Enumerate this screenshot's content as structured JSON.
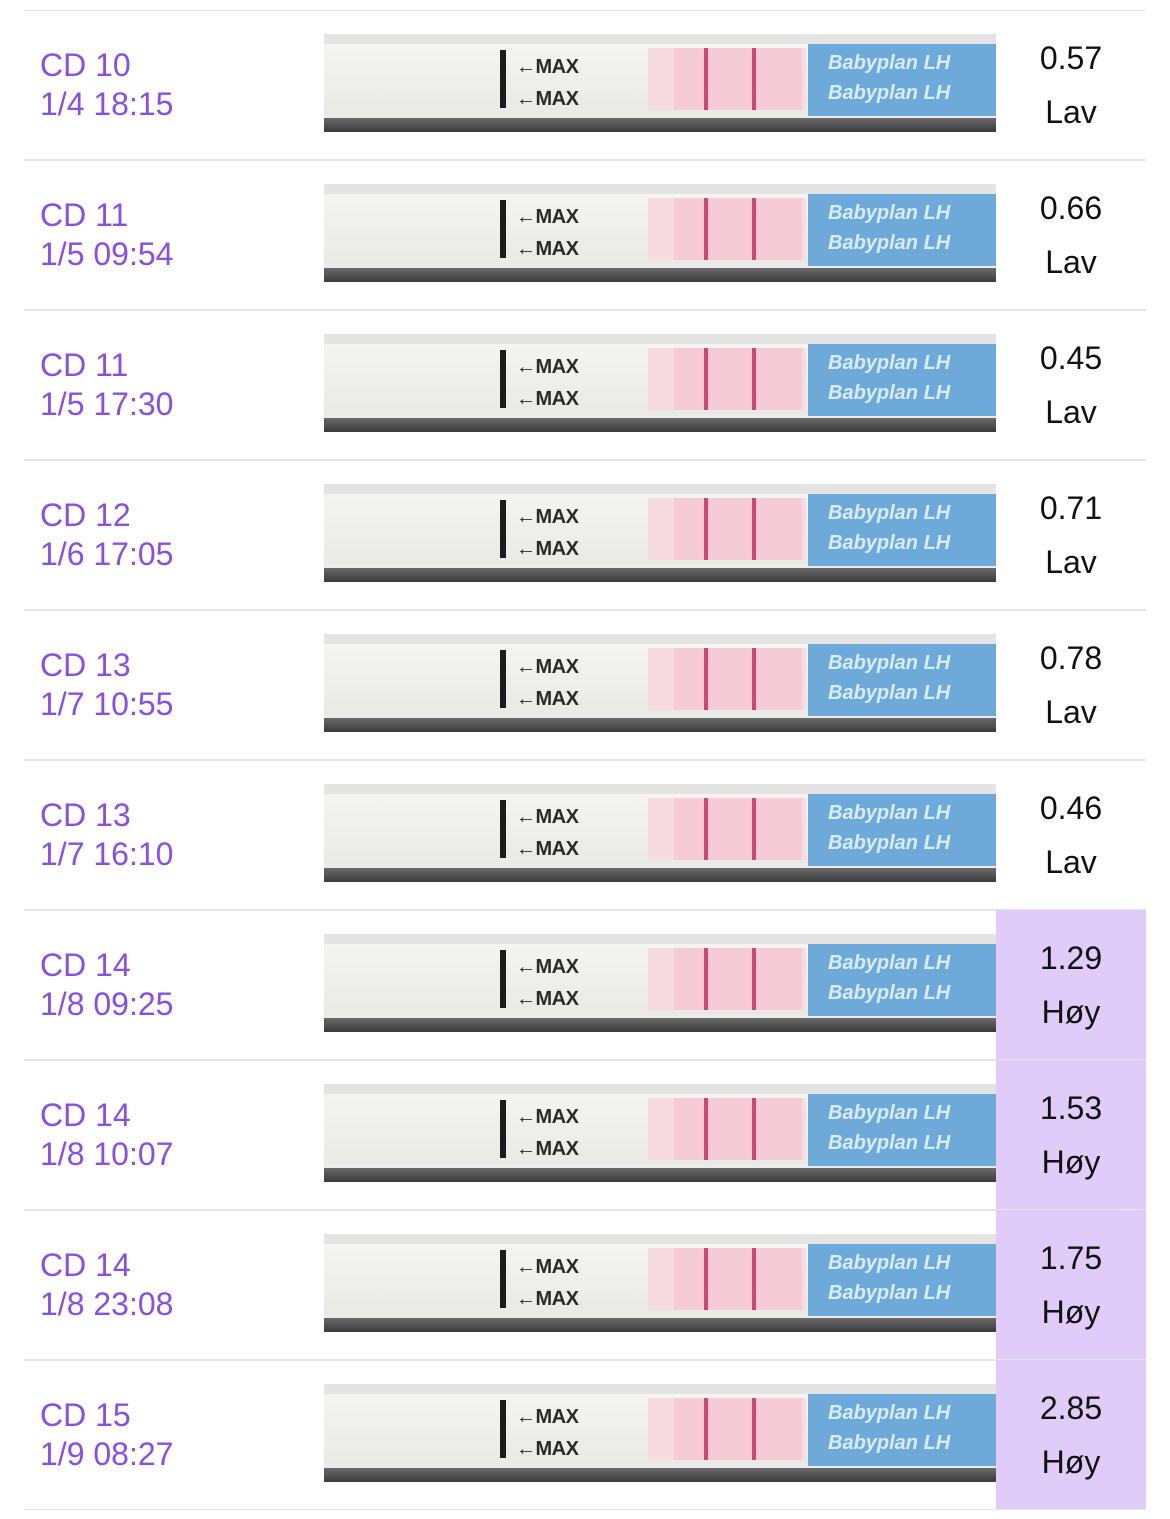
{
  "entries": [
    {
      "cycle_day": "CD 10",
      "datetime": "1/4 18:15",
      "value": "0.57",
      "level": "Lav",
      "high": false
    },
    {
      "cycle_day": "CD 11",
      "datetime": "1/5 09:54",
      "value": "0.66",
      "level": "Lav",
      "high": false
    },
    {
      "cycle_day": "CD 11",
      "datetime": "1/5 17:30",
      "value": "0.45",
      "level": "Lav",
      "high": false
    },
    {
      "cycle_day": "CD 12",
      "datetime": "1/6 17:05",
      "value": "0.71",
      "level": "Lav",
      "high": false
    },
    {
      "cycle_day": "CD 13",
      "datetime": "1/7 10:55",
      "value": "0.78",
      "level": "Lav",
      "high": false
    },
    {
      "cycle_day": "CD 13",
      "datetime": "1/7 16:10",
      "value": "0.46",
      "level": "Lav",
      "high": false
    },
    {
      "cycle_day": "CD 14",
      "datetime": "1/8 09:25",
      "value": "1.29",
      "level": "Høy",
      "high": true
    },
    {
      "cycle_day": "CD 14",
      "datetime": "1/8 10:07",
      "value": "1.53",
      "level": "Høy",
      "high": true
    },
    {
      "cycle_day": "CD 14",
      "datetime": "1/8 23:08",
      "value": "1.75",
      "level": "Høy",
      "high": true
    },
    {
      "cycle_day": "CD 15",
      "datetime": "1/9 08:27",
      "value": "2.85",
      "level": "Høy",
      "high": true
    }
  ],
  "strip": {
    "max_label": "←MAX",
    "brand": "Babyplan LH"
  },
  "colors": {
    "label": "#8a4fe0",
    "high_bg": "#e0ccf8",
    "separator": "#e6e6ea"
  }
}
